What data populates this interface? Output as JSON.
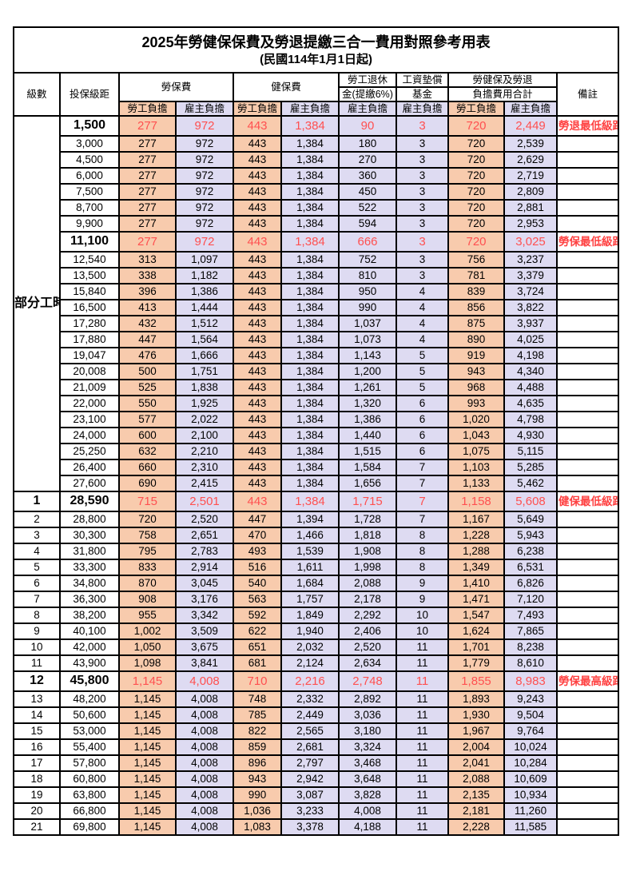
{
  "title": "2025年勞健保保費及勞退提繳三合一費用對照參考用表",
  "subtitle": "(民國114年1月1日起)",
  "headers": {
    "level": "級數",
    "bracket": "投保級距",
    "labor": "勞保費",
    "health": "健保費",
    "pension_line1": "勞工退休",
    "pension_line2": "金(提繳6%)",
    "wage_line1": "工資墊償",
    "wage_line2": "基金",
    "total_line1": "勞健保及勞退",
    "total_line2": "負擔費用合計",
    "employee": "勞工負擔",
    "employer": "雇主負擔",
    "remark": "備註"
  },
  "part_time_label": "部分工時",
  "colors": {
    "employee_bg": "#F8CBAD",
    "employer_bg": "#DEDBF2",
    "highlight_value": "#FF5050",
    "remark_red": "#FF4040"
  },
  "rows": [
    {
      "level": "",
      "bracket": "1,500",
      "values": [
        "277",
        "972",
        "443",
        "1,384",
        "90",
        "3",
        "720",
        "2,449"
      ],
      "remark": "勞退最低級距",
      "highlight": true
    },
    {
      "level": "",
      "bracket": "3,000",
      "values": [
        "277",
        "972",
        "443",
        "1,384",
        "180",
        "3",
        "720",
        "2,539"
      ],
      "remark": "",
      "highlight": false
    },
    {
      "level": "",
      "bracket": "4,500",
      "values": [
        "277",
        "972",
        "443",
        "1,384",
        "270",
        "3",
        "720",
        "2,629"
      ],
      "remark": "",
      "highlight": false
    },
    {
      "level": "",
      "bracket": "6,000",
      "values": [
        "277",
        "972",
        "443",
        "1,384",
        "360",
        "3",
        "720",
        "2,719"
      ],
      "remark": "",
      "highlight": false
    },
    {
      "level": "",
      "bracket": "7,500",
      "values": [
        "277",
        "972",
        "443",
        "1,384",
        "450",
        "3",
        "720",
        "2,809"
      ],
      "remark": "",
      "highlight": false
    },
    {
      "level": "",
      "bracket": "8,700",
      "values": [
        "277",
        "972",
        "443",
        "1,384",
        "522",
        "3",
        "720",
        "2,881"
      ],
      "remark": "",
      "highlight": false
    },
    {
      "level": "",
      "bracket": "9,900",
      "values": [
        "277",
        "972",
        "443",
        "1,384",
        "594",
        "3",
        "720",
        "2,953"
      ],
      "remark": "",
      "highlight": false
    },
    {
      "level": "",
      "bracket": "11,100",
      "values": [
        "277",
        "972",
        "443",
        "1,384",
        "666",
        "3",
        "720",
        "3,025"
      ],
      "remark": "勞保最低級距",
      "highlight": true
    },
    {
      "level": "",
      "bracket": "12,540",
      "values": [
        "313",
        "1,097",
        "443",
        "1,384",
        "752",
        "3",
        "756",
        "3,237"
      ],
      "remark": "",
      "highlight": false
    },
    {
      "level": "",
      "bracket": "13,500",
      "values": [
        "338",
        "1,182",
        "443",
        "1,384",
        "810",
        "3",
        "781",
        "3,379"
      ],
      "remark": "",
      "highlight": false
    },
    {
      "level": "",
      "bracket": "15,840",
      "values": [
        "396",
        "1,386",
        "443",
        "1,384",
        "950",
        "4",
        "839",
        "3,724"
      ],
      "remark": "",
      "highlight": false
    },
    {
      "level": "",
      "bracket": "16,500",
      "values": [
        "413",
        "1,444",
        "443",
        "1,384",
        "990",
        "4",
        "856",
        "3,822"
      ],
      "remark": "",
      "highlight": false
    },
    {
      "level": "",
      "bracket": "17,280",
      "values": [
        "432",
        "1,512",
        "443",
        "1,384",
        "1,037",
        "4",
        "875",
        "3,937"
      ],
      "remark": "",
      "highlight": false
    },
    {
      "level": "",
      "bracket": "17,880",
      "values": [
        "447",
        "1,564",
        "443",
        "1,384",
        "1,073",
        "4",
        "890",
        "4,025"
      ],
      "remark": "",
      "highlight": false
    },
    {
      "level": "",
      "bracket": "19,047",
      "values": [
        "476",
        "1,666",
        "443",
        "1,384",
        "1,143",
        "5",
        "919",
        "4,198"
      ],
      "remark": "",
      "highlight": false
    },
    {
      "level": "",
      "bracket": "20,008",
      "values": [
        "500",
        "1,751",
        "443",
        "1,384",
        "1,200",
        "5",
        "943",
        "4,340"
      ],
      "remark": "",
      "highlight": false
    },
    {
      "level": "",
      "bracket": "21,009",
      "values": [
        "525",
        "1,838",
        "443",
        "1,384",
        "1,261",
        "5",
        "968",
        "4,488"
      ],
      "remark": "",
      "highlight": false
    },
    {
      "level": "",
      "bracket": "22,000",
      "values": [
        "550",
        "1,925",
        "443",
        "1,384",
        "1,320",
        "6",
        "993",
        "4,635"
      ],
      "remark": "",
      "highlight": false
    },
    {
      "level": "",
      "bracket": "23,100",
      "values": [
        "577",
        "2,022",
        "443",
        "1,384",
        "1,386",
        "6",
        "1,020",
        "4,798"
      ],
      "remark": "",
      "highlight": false
    },
    {
      "level": "",
      "bracket": "24,000",
      "values": [
        "600",
        "2,100",
        "443",
        "1,384",
        "1,440",
        "6",
        "1,043",
        "4,930"
      ],
      "remark": "",
      "highlight": false
    },
    {
      "level": "",
      "bracket": "25,250",
      "values": [
        "632",
        "2,210",
        "443",
        "1,384",
        "1,515",
        "6",
        "1,075",
        "5,115"
      ],
      "remark": "",
      "highlight": false
    },
    {
      "level": "",
      "bracket": "26,400",
      "values": [
        "660",
        "2,310",
        "443",
        "1,384",
        "1,584",
        "7",
        "1,103",
        "5,285"
      ],
      "remark": "",
      "highlight": false
    },
    {
      "level": "",
      "bracket": "27,600",
      "values": [
        "690",
        "2,415",
        "443",
        "1,384",
        "1,656",
        "7",
        "1,133",
        "5,462"
      ],
      "remark": "",
      "highlight": false
    },
    {
      "level": "1",
      "bracket": "28,590",
      "values": [
        "715",
        "2,501",
        "443",
        "1,384",
        "1,715",
        "7",
        "1,158",
        "5,608"
      ],
      "remark": "健保最低級距",
      "highlight": true
    },
    {
      "level": "2",
      "bracket": "28,800",
      "values": [
        "720",
        "2,520",
        "447",
        "1,394",
        "1,728",
        "7",
        "1,167",
        "5,649"
      ],
      "remark": "",
      "highlight": false
    },
    {
      "level": "3",
      "bracket": "30,300",
      "values": [
        "758",
        "2,651",
        "470",
        "1,466",
        "1,818",
        "8",
        "1,228",
        "5,943"
      ],
      "remark": "",
      "highlight": false
    },
    {
      "level": "4",
      "bracket": "31,800",
      "values": [
        "795",
        "2,783",
        "493",
        "1,539",
        "1,908",
        "8",
        "1,288",
        "6,238"
      ],
      "remark": "",
      "highlight": false
    },
    {
      "level": "5",
      "bracket": "33,300",
      "values": [
        "833",
        "2,914",
        "516",
        "1,611",
        "1,998",
        "8",
        "1,349",
        "6,531"
      ],
      "remark": "",
      "highlight": false
    },
    {
      "level": "6",
      "bracket": "34,800",
      "values": [
        "870",
        "3,045",
        "540",
        "1,684",
        "2,088",
        "9",
        "1,410",
        "6,826"
      ],
      "remark": "",
      "highlight": false
    },
    {
      "level": "7",
      "bracket": "36,300",
      "values": [
        "908",
        "3,176",
        "563",
        "1,757",
        "2,178",
        "9",
        "1,471",
        "7,120"
      ],
      "remark": "",
      "highlight": false
    },
    {
      "level": "8",
      "bracket": "38,200",
      "values": [
        "955",
        "3,342",
        "592",
        "1,849",
        "2,292",
        "10",
        "1,547",
        "7,493"
      ],
      "remark": "",
      "highlight": false
    },
    {
      "level": "9",
      "bracket": "40,100",
      "values": [
        "1,002",
        "3,509",
        "622",
        "1,940",
        "2,406",
        "10",
        "1,624",
        "7,865"
      ],
      "remark": "",
      "highlight": false
    },
    {
      "level": "10",
      "bracket": "42,000",
      "values": [
        "1,050",
        "3,675",
        "651",
        "2,032",
        "2,520",
        "11",
        "1,701",
        "8,238"
      ],
      "remark": "",
      "highlight": false
    },
    {
      "level": "11",
      "bracket": "43,900",
      "values": [
        "1,098",
        "3,841",
        "681",
        "2,124",
        "2,634",
        "11",
        "1,779",
        "8,610"
      ],
      "remark": "",
      "highlight": false
    },
    {
      "level": "12",
      "bracket": "45,800",
      "values": [
        "1,145",
        "4,008",
        "710",
        "2,216",
        "2,748",
        "11",
        "1,855",
        "8,983"
      ],
      "remark": "勞保最高級距",
      "highlight": true
    },
    {
      "level": "13",
      "bracket": "48,200",
      "values": [
        "1,145",
        "4,008",
        "748",
        "2,332",
        "2,892",
        "11",
        "1,893",
        "9,243"
      ],
      "remark": "",
      "highlight": false
    },
    {
      "level": "14",
      "bracket": "50,600",
      "values": [
        "1,145",
        "4,008",
        "785",
        "2,449",
        "3,036",
        "11",
        "1,930",
        "9,504"
      ],
      "remark": "",
      "highlight": false
    },
    {
      "level": "15",
      "bracket": "53,000",
      "values": [
        "1,145",
        "4,008",
        "822",
        "2,565",
        "3,180",
        "11",
        "1,967",
        "9,764"
      ],
      "remark": "",
      "highlight": false
    },
    {
      "level": "16",
      "bracket": "55,400",
      "values": [
        "1,145",
        "4,008",
        "859",
        "2,681",
        "3,324",
        "11",
        "2,004",
        "10,024"
      ],
      "remark": "",
      "highlight": false
    },
    {
      "level": "17",
      "bracket": "57,800",
      "values": [
        "1,145",
        "4,008",
        "896",
        "2,797",
        "3,468",
        "11",
        "2,041",
        "10,284"
      ],
      "remark": "",
      "highlight": false
    },
    {
      "level": "18",
      "bracket": "60,800",
      "values": [
        "1,145",
        "4,008",
        "943",
        "2,942",
        "3,648",
        "11",
        "2,088",
        "10,609"
      ],
      "remark": "",
      "highlight": false
    },
    {
      "level": "19",
      "bracket": "63,800",
      "values": [
        "1,145",
        "4,008",
        "990",
        "3,087",
        "3,828",
        "11",
        "2,135",
        "10,934"
      ],
      "remark": "",
      "highlight": false
    },
    {
      "level": "20",
      "bracket": "66,800",
      "values": [
        "1,145",
        "4,008",
        "1,036",
        "3,233",
        "4,008",
        "11",
        "2,181",
        "11,260"
      ],
      "remark": "",
      "highlight": false
    },
    {
      "level": "21",
      "bracket": "69,800",
      "values": [
        "1,145",
        "4,008",
        "1,083",
        "3,378",
        "4,188",
        "11",
        "2,228",
        "11,585"
      ],
      "remark": "",
      "highlight": false
    }
  ]
}
